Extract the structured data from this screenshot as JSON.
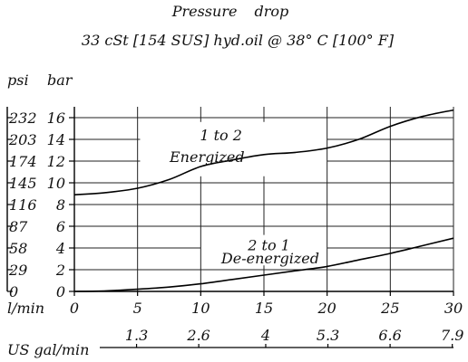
{
  "chart_data": {
    "type": "line",
    "title": "Pressure drop",
    "subtitle": "33 cSt [154 SUS] hyd.oil @ 38° C [100° F]",
    "axes": {
      "x": {
        "label": "l/min",
        "range": [
          0,
          30
        ],
        "ticks": [
          0,
          5,
          10,
          15,
          20,
          25,
          30
        ]
      },
      "x2": {
        "label": "US gal/min",
        "ticks": [
          "1.3",
          "2.6",
          "4",
          "5.3",
          "6.6",
          "7.9"
        ]
      },
      "y_bar": {
        "label": "bar",
        "range": [
          0,
          17
        ],
        "ticks": [
          0,
          2,
          4,
          6,
          8,
          10,
          12,
          14,
          16
        ]
      },
      "y_psi": {
        "label": "psi",
        "ticks": [
          "0",
          "29",
          "58",
          "87",
          "116",
          "145",
          "174",
          "203",
          "232"
        ]
      }
    },
    "grid": true,
    "series": [
      {
        "name": "1 to 2\nEnergized",
        "label_lines": [
          "1 to 2",
          "Energized"
        ],
        "x": [
          0,
          2.5,
          5,
          7.5,
          10,
          12.5,
          15,
          17.5,
          20,
          22.5,
          25,
          27.5,
          30
        ],
        "y": [
          8.9,
          9.1,
          9.5,
          10.3,
          11.5,
          12.1,
          12.6,
          12.8,
          13.2,
          14.0,
          15.2,
          16.1,
          16.7
        ]
      },
      {
        "name": "2 to 1\nDe-energized",
        "label_lines": [
          "2 to 1",
          "De-energized"
        ],
        "x": [
          0,
          2.5,
          5,
          7.5,
          10,
          12.5,
          15,
          17.5,
          20,
          22.5,
          25,
          27.5,
          30
        ],
        "y": [
          0,
          0.05,
          0.2,
          0.4,
          0.7,
          1.1,
          1.5,
          1.9,
          2.3,
          2.9,
          3.5,
          4.2,
          4.9
        ]
      }
    ]
  }
}
